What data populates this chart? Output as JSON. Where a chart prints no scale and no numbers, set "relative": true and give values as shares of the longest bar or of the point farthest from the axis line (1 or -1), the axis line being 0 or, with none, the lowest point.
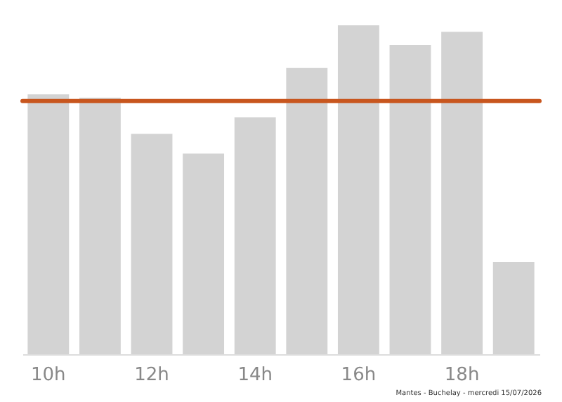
{
  "chart_data": {
    "type": "bar",
    "relative": true,
    "categories": [
      "10h",
      null,
      "12h",
      null,
      "14h",
      null,
      "16h",
      null,
      "18h",
      null
    ],
    "series": [
      {
        "color": "#d3d3d3",
        "values": [
          0.79,
          0.78,
          0.67,
          0.61,
          0.72,
          0.87,
          1,
          0.94,
          0.98,
          0.28
        ]
      }
    ],
    "ref_lines": [
      {
        "axis": "y",
        "value": 0.77,
        "color": "#c8561e"
      }
    ],
    "legend": false,
    "annotations": [
      "Mantes - Buchelay - mercredi 15/07/2026"
    ]
  }
}
